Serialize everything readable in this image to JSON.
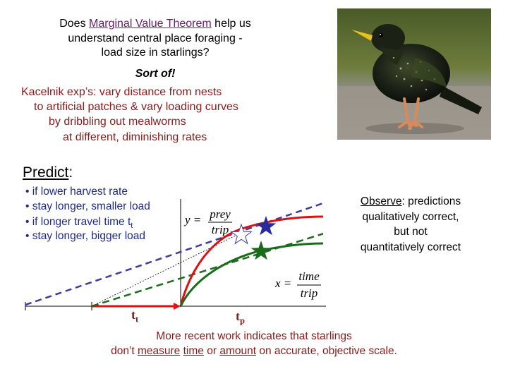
{
  "title": {
    "pre": "Does ",
    "link": "Marginal Value Theorem",
    "post_line1": " help us",
    "line2": "understand central place foraging -",
    "line3": "load size in starlings?"
  },
  "sort_of": "Sort of!",
  "kacelnik_lines": [
    "Kacelnik exp’s: vary distance from nests",
    "to artificial patches & vary loading curves",
    "by dribbling out mealworms",
    "at different, diminishing rates"
  ],
  "predict": {
    "label": "Predict",
    "colon": ":"
  },
  "bullets": [
    "if lower harvest rate",
    "stay longer, smaller load",
    "if longer travel time t",
    "stay longer, bigger load"
  ],
  "bullet3_sub": "t",
  "observe": {
    "label": "Observe",
    "line1_rest": ": predictions",
    "line2": "qualitatively correct,",
    "line3": "but not",
    "line4": "quantitatively correct"
  },
  "graph": {
    "y_var": "y =",
    "y_num": "prey",
    "y_den": "trip",
    "x_var": "x =",
    "x_num": "time",
    "x_den": "trip",
    "t_t": "t",
    "t_t_sub": "t",
    "t_p": "t",
    "t_p_sub": "p"
  },
  "bottom": {
    "line1": "More recent work indicates that starlings",
    "pre": "don’t ",
    "w1": "measure",
    "w2": "time",
    "mid1": " ",
    "or": " or ",
    "w3": "amount",
    "post": " on accurate, objective scale."
  },
  "colors": {
    "red_curve": "#e01010",
    "green_curve": "#1a6b1a",
    "blue_line": "#3a3aa0",
    "dark_red_text": "#8b1a1a"
  }
}
